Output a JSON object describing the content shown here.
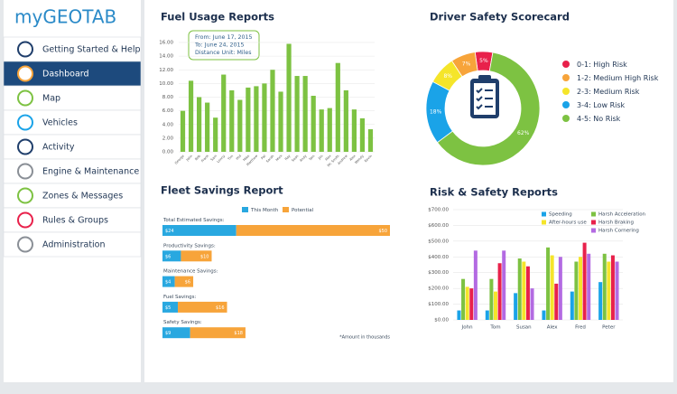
{
  "sidebar": {
    "logo": "myGEOTAB",
    "items": [
      "Getting Started & Help",
      "Dashboard",
      "Map",
      "Vehicles",
      "Activity",
      "Engine & Maintenance",
      "Zones & Messages",
      "Rules & Groups",
      "Administration"
    ],
    "active": 1
  },
  "chart_data": [
    {
      "type": "bar",
      "title": "Fuel Usage Reports",
      "annotation": [
        "From: June 17, 2015",
        "To: June 24, 2015",
        "Distance Unit: Miles"
      ],
      "categories": [
        "George",
        "John",
        "Bob",
        "Frank",
        "Sam",
        "Lenny",
        "Tim",
        "Phil",
        "Mike",
        "Matthew",
        "Pat",
        "Sarah",
        "Mick",
        "Ray",
        "Sean",
        "Andy",
        "Tom",
        "Jim",
        "Max",
        "Mr. Smith",
        "Andrew",
        "Alex",
        "Wendy",
        "Kevin"
      ],
      "values": [
        6.0,
        10.4,
        8.0,
        7.2,
        5.0,
        11.3,
        9.0,
        7.6,
        9.4,
        9.6,
        10.0,
        12.0,
        8.8,
        15.8,
        11.1,
        11.1,
        8.2,
        6.2,
        6.4,
        13.0,
        9.0,
        6.2,
        4.9,
        3.3
      ],
      "color": "#7dc242",
      "ylim": [
        0,
        16
      ],
      "yticks": [
        {
          "value": 0,
          "label": "0.00"
        },
        {
          "value": 2,
          "label": "2.00"
        },
        {
          "value": 4,
          "label": "4.00"
        },
        {
          "value": 6,
          "label": "6.00"
        },
        {
          "value": 8,
          "label": "8.00"
        },
        {
          "value": 10,
          "label": "10.00"
        },
        {
          "value": 12,
          "label": "12.00"
        },
        {
          "value": 14,
          "label": "14.00"
        },
        {
          "value": 16,
          "label": "16.00"
        }
      ],
      "grid": true
    },
    {
      "type": "donut",
      "title": "Driver Safety Scorecard",
      "categories": [
        "0-1: High Risk",
        "1-2: Medium High Risk",
        "2-3: Medium Risk",
        "3-4: Low Risk",
        "4-5: No Risk"
      ],
      "values": [
        5,
        7,
        8,
        18,
        62
      ],
      "value_labels": [
        "5%",
        "7%",
        "8%",
        "18%",
        "62%"
      ],
      "colors": [
        "#e8214b",
        "#f7a43a",
        "#f5e52a",
        "#1aa3e8",
        "#7dc242"
      ]
    },
    {
      "type": "stacked_barh",
      "title": "Fleet Savings Report",
      "note": "*Amount in thousands",
      "categories": [
        "Total Estimated Savings:",
        "Productivity Savings:",
        "Maintenance Savings:",
        "Fuel Savings:",
        "Safety Savings:"
      ],
      "series": [
        {
          "name": "This Month",
          "color": "#29a8e0",
          "values": [
            24,
            6,
            4,
            5,
            9
          ],
          "value_labels": [
            "$24",
            "$6",
            "$4",
            "$5",
            "$9"
          ]
        },
        {
          "name": "Potential",
          "color": "#f7a43a",
          "values": [
            50,
            10,
            6,
            16,
            18
          ],
          "value_labels": [
            "$50",
            "$10",
            "$6",
            "$16",
            "$18"
          ]
        }
      ],
      "xlim": [
        0,
        74
      ]
    },
    {
      "type": "grouped_bar",
      "title": "Risk & Safety Reports",
      "categories": [
        "John",
        "Tom",
        "Susan",
        "Alex",
        "Fred",
        "Peter"
      ],
      "series": [
        {
          "name": "Speeding",
          "color": "#1aa3e8",
          "values": [
            60,
            60,
            170,
            60,
            180,
            240
          ]
        },
        {
          "name": "Harsh Acceleration",
          "color": "#7dc242",
          "values": [
            260,
            260,
            390,
            460,
            370,
            420
          ]
        },
        {
          "name": "After-hours use",
          "color": "#f5e52a",
          "values": [
            210,
            180,
            370,
            410,
            400,
            370
          ]
        },
        {
          "name": "Harsh Braking",
          "color": "#e8214b",
          "values": [
            200,
            360,
            340,
            230,
            490,
            410
          ]
        },
        {
          "name": "Harsh Cornering",
          "color": "#b36ae2",
          "values": [
            440,
            440,
            200,
            400,
            420,
            370
          ]
        }
      ],
      "ylim": [
        0,
        700
      ],
      "yticks": [
        {
          "value": 0,
          "label": "$0.00"
        },
        {
          "value": 100,
          "label": "$100.00"
        },
        {
          "value": 200,
          "label": "$200.00"
        },
        {
          "value": 300,
          "label": "$300.00"
        },
        {
          "value": 400,
          "label": "$400.00"
        },
        {
          "value": 500,
          "label": "$500.00"
        },
        {
          "value": 600,
          "label": "$600.00"
        },
        {
          "value": 700,
          "label": "$700.00"
        }
      ],
      "grid": true
    }
  ]
}
